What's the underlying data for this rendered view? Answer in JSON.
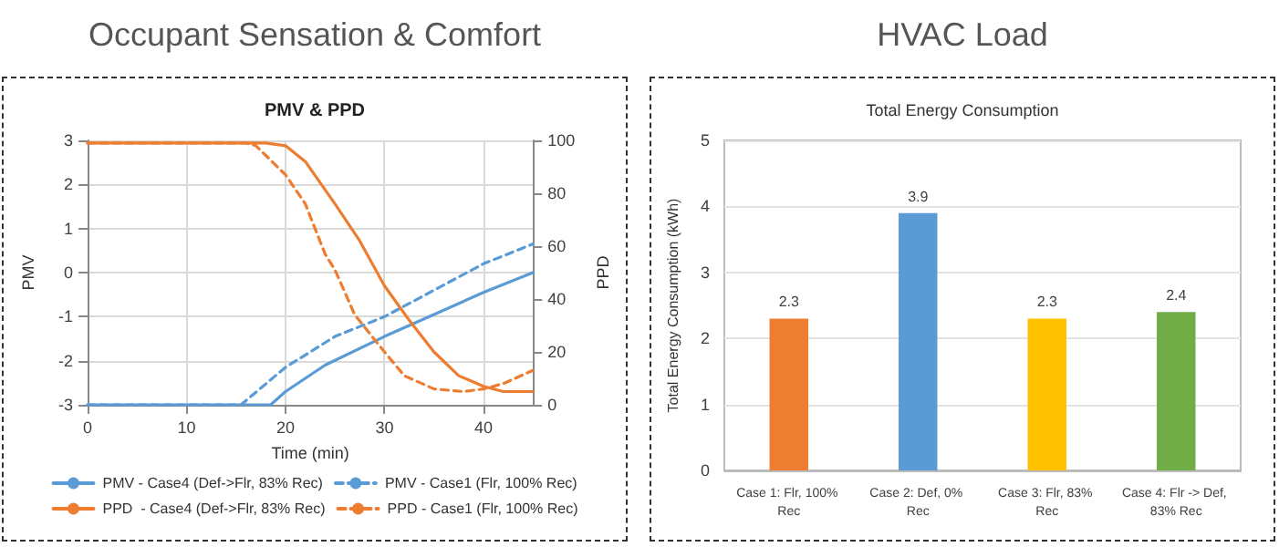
{
  "chart_data": [
    {
      "type": "line",
      "title": "Occupant Sensation & Comfort",
      "subtitle": "PMV & PPD",
      "xlabel": "Time (min)",
      "ylabel": "PMV",
      "y2label": "PPD",
      "xlim": [
        0,
        45
      ],
      "xticks": [
        0,
        10,
        20,
        30,
        40
      ],
      "ylim": [
        -3,
        3
      ],
      "yticks": [
        -3,
        -2,
        -1,
        0,
        1,
        2,
        3
      ],
      "y2lim": [
        0,
        100
      ],
      "y2ticks": [
        0,
        20,
        40,
        60,
        80,
        100
      ],
      "grid": true,
      "legend": "bottom",
      "marker": "none",
      "series": [
        {
          "name": "PMV - Case4 (Def->Flr, 83% Rec)",
          "color": "#5b9bd5",
          "line_style": "solid",
          "x": [
            0,
            18.5,
            20,
            24,
            30,
            35,
            40,
            45
          ],
          "values": [
            -3,
            -3,
            -2.7,
            -2.1,
            -1.45,
            -0.95,
            -0.45,
            0
          ]
        },
        {
          "name": "PMV - Case1 (Flr, 100% Rec)",
          "color": "#5b9bd5",
          "line_style": "dashed",
          "x": [
            0,
            15.5,
            20,
            25,
            30,
            35,
            40,
            45
          ],
          "values": [
            -3,
            -3,
            -2.15,
            -1.45,
            -1,
            -0.4,
            0.2,
            0.65
          ]
        },
        {
          "name": "PPD  - Case4 (Def->Flr, 83% Rec)",
          "color": "#ed7d31",
          "line_style": "solid",
          "axis": "y2",
          "x": [
            0,
            18,
            20,
            22,
            25,
            27.5,
            30,
            32.5,
            35,
            37.5,
            40,
            42,
            45
          ],
          "values": [
            99,
            99,
            98,
            92,
            76,
            62,
            45,
            32,
            20,
            11,
            7,
            5,
            5
          ]
        },
        {
          "name": "PPD - Case1 (Flr, 100% Rec)",
          "color": "#ed7d31",
          "line_style": "dashed",
          "axis": "y2",
          "x": [
            0,
            16,
            17,
            20,
            22,
            24,
            25,
            27,
            30,
            32,
            35,
            38,
            40,
            42,
            45
          ],
          "values": [
            99,
            99,
            98,
            87,
            76,
            57,
            51,
            34,
            20,
            11,
            6,
            5,
            6,
            8,
            13
          ]
        }
      ]
    },
    {
      "type": "bar",
      "title": "HVAC Load",
      "subtitle": "Total Energy Consumption",
      "ylabel": "Total Energy Consumption (kWh)",
      "categories": [
        "Case 1: Flr, 100% Rec",
        "Case 2: Def, 0% Rec",
        "Case 3: Flr, 83% Rec",
        "Case 4: Flr -> Def, 83% Rec"
      ],
      "values": [
        2.3,
        3.9,
        2.3,
        2.4
      ],
      "colors": [
        "#ed7d31",
        "#5b9bd5",
        "#ffc000",
        "#70ad47"
      ],
      "ylim": [
        0,
        5
      ],
      "yticks": [
        0,
        1,
        2,
        3,
        4,
        5
      ],
      "grid": "y",
      "data_labels": true
    }
  ]
}
